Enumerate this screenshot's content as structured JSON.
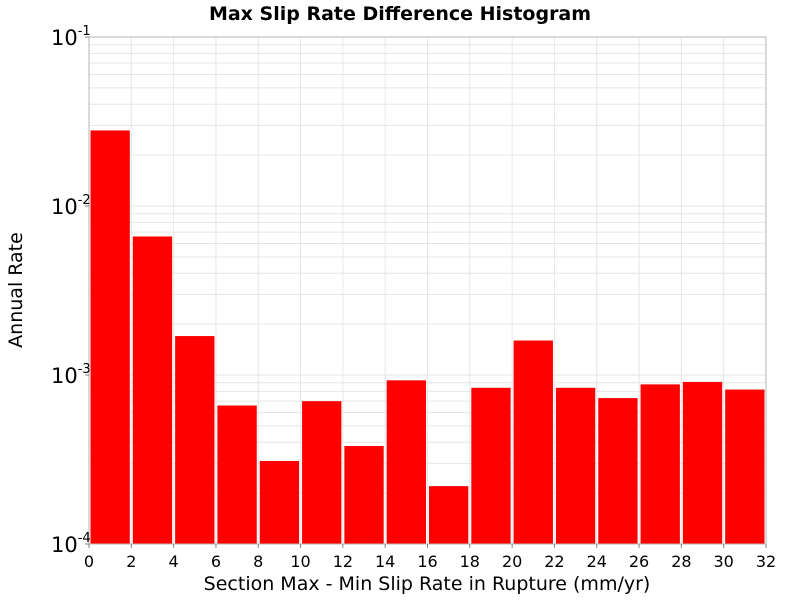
{
  "chart_data": {
    "type": "bar",
    "title": "Max Slip Rate Difference Histogram",
    "xlabel": "Section Max - Min Slip Rate in Rupture (mm/yr)",
    "ylabel": "Annual Rate",
    "xlim": [
      0,
      32
    ],
    "ylim": [
      0.0001,
      0.1
    ],
    "yscale": "log",
    "bin_width": 2,
    "x_ticks": [
      "0",
      "2",
      "4",
      "6",
      "8",
      "10",
      "12",
      "14",
      "16",
      "18",
      "20",
      "22",
      "24",
      "26",
      "28",
      "30",
      "32"
    ],
    "y_ticks": [
      {
        "value": 0.1,
        "base": "10",
        "exp": "-1"
      },
      {
        "value": 0.01,
        "base": "10",
        "exp": "-2"
      },
      {
        "value": 0.001,
        "base": "10",
        "exp": "-3"
      },
      {
        "value": 0.0001,
        "base": "10",
        "exp": "-4"
      }
    ],
    "bins": [
      {
        "x0": 0,
        "x1": 2,
        "value": 0.028
      },
      {
        "x0": 2,
        "x1": 4,
        "value": 0.0066
      },
      {
        "x0": 4,
        "x1": 6,
        "value": 0.0017
      },
      {
        "x0": 6,
        "x1": 8,
        "value": 0.00066
      },
      {
        "x0": 8,
        "x1": 10,
        "value": 0.00031
      },
      {
        "x0": 10,
        "x1": 12,
        "value": 0.0007
      },
      {
        "x0": 12,
        "x1": 14,
        "value": 0.00038
      },
      {
        "x0": 14,
        "x1": 16,
        "value": 0.00093
      },
      {
        "x0": 16,
        "x1": 18,
        "value": 0.00022
      },
      {
        "x0": 18,
        "x1": 20,
        "value": 0.00084
      },
      {
        "x0": 20,
        "x1": 22,
        "value": 0.0016
      },
      {
        "x0": 22,
        "x1": 24,
        "value": 0.00084
      },
      {
        "x0": 24,
        "x1": 26,
        "value": 0.00073
      },
      {
        "x0": 26,
        "x1": 28,
        "value": 0.00088
      },
      {
        "x0": 28,
        "x1": 30,
        "value": 0.00091
      },
      {
        "x0": 30,
        "x1": 32,
        "value": 0.00082
      }
    ],
    "bar_color": "#ff0000",
    "grid": true,
    "grid_color": "#e6e6e6",
    "legend": "none"
  }
}
